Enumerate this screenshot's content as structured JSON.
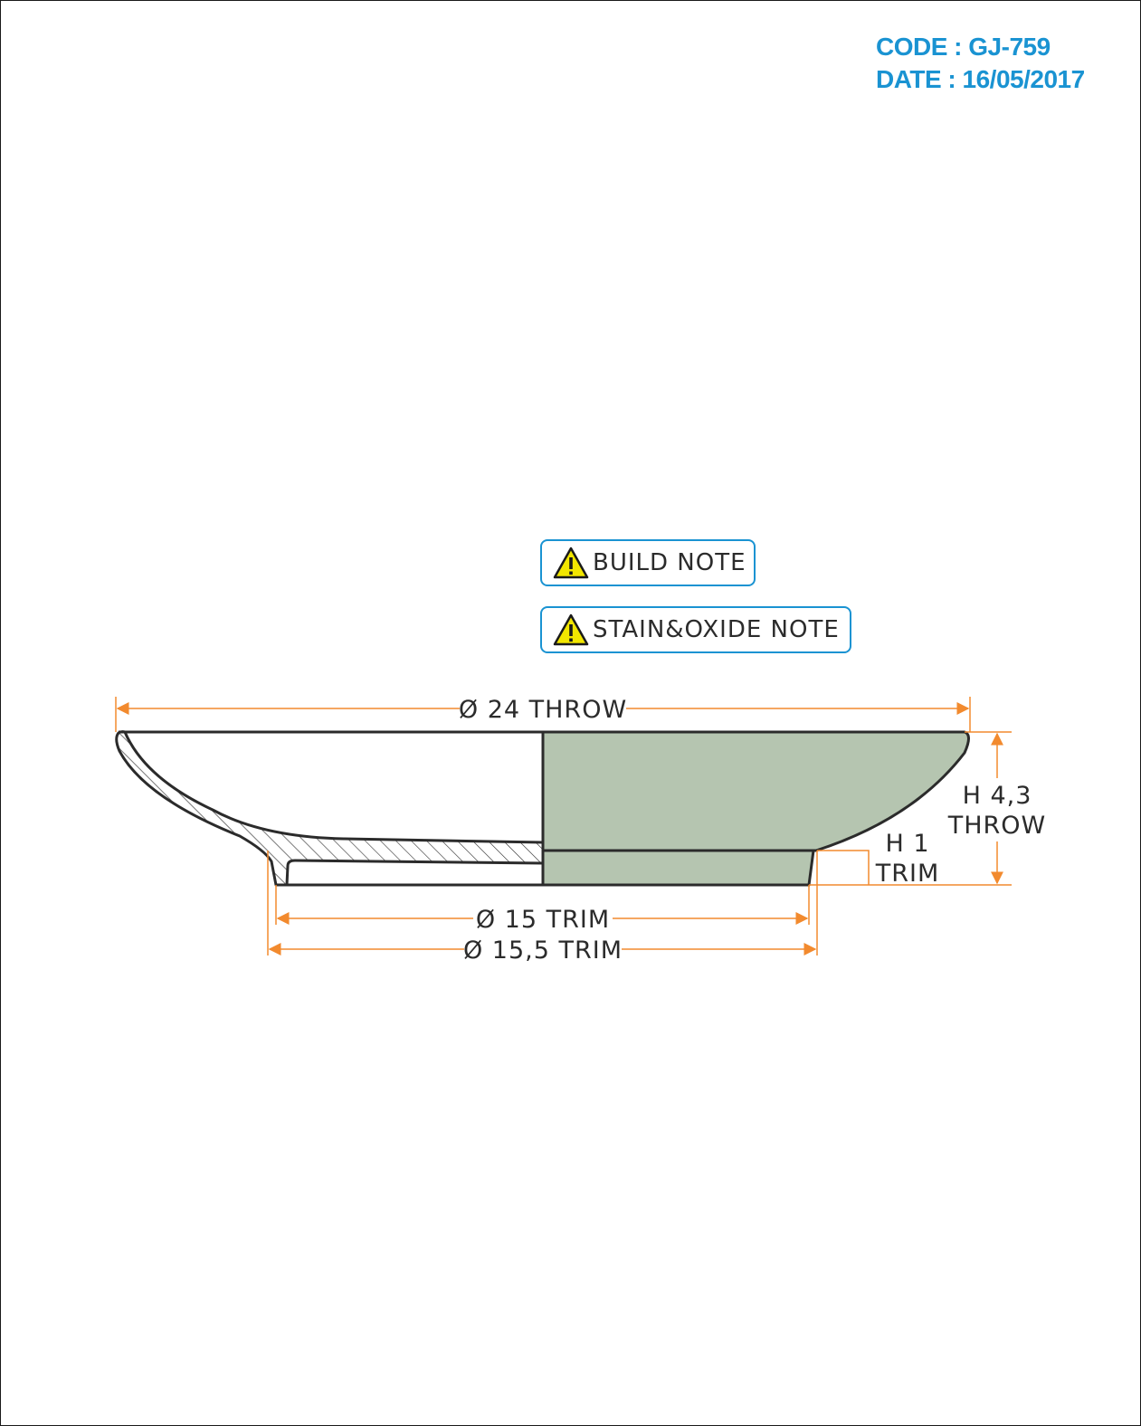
{
  "header": {
    "code": "CODE : GJ-759",
    "date": "DATE : 16/05/2017"
  },
  "notes": {
    "build": "BUILD NOTE",
    "stain": "STAIN&OXIDE NOTE"
  },
  "dimensions": {
    "throw_diameter": "Ø 24 THROW",
    "trim_diameter_inner": "Ø 15 TRIM",
    "trim_diameter_outer": "Ø 15,5 TRIM",
    "height_throw_value": "H 4,3",
    "height_throw_label": "THROW",
    "height_trim_value": "H 1",
    "height_trim_label": "TRIM"
  },
  "colors": {
    "accent": "#1a93d2",
    "dimension": "#f28a2e",
    "glaze": "#b5c5b0",
    "outline": "#2b2b2b",
    "warning": "#f2e600"
  },
  "icons": {
    "note_icon": "warning-icon"
  }
}
